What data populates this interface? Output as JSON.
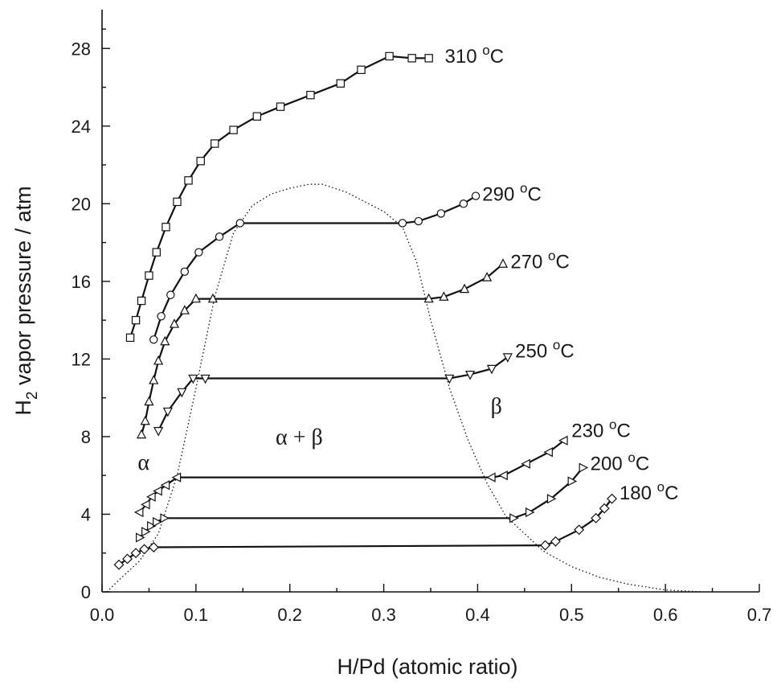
{
  "chart_data": {
    "type": "line",
    "title": "",
    "xlabel": "H/Pd (atomic ratio)",
    "ylabel_main": "H",
    "ylabel_sub": "2",
    "ylabel_rest": " vapor pressure / atm",
    "xlim": [
      0.0,
      0.7
    ],
    "ylim": [
      0,
      30
    ],
    "x_ticks": [
      "0.0",
      "0.1",
      "0.2",
      "0.3",
      "0.4",
      "0.5",
      "0.6",
      "0.7"
    ],
    "y_ticks": [
      "0",
      "4",
      "8",
      "12",
      "16",
      "20",
      "24",
      "28"
    ],
    "grid": false,
    "region_labels": [
      {
        "text": "α",
        "x": 0.038,
        "y": 6.3
      },
      {
        "text": "α + β",
        "x": 0.21,
        "y": 7.6
      },
      {
        "text": "β",
        "x": 0.42,
        "y": 9.2
      }
    ],
    "envelope": {
      "x": [
        0.005,
        0.02,
        0.04,
        0.06,
        0.08,
        0.1,
        0.12,
        0.14,
        0.16,
        0.18,
        0.2,
        0.22,
        0.235,
        0.26,
        0.28,
        0.3,
        0.32,
        0.335,
        0.35,
        0.37,
        0.39,
        0.41,
        0.43,
        0.45,
        0.47,
        0.5,
        0.53,
        0.56,
        0.6,
        0.64
      ],
      "y": [
        0.0,
        0.7,
        1.6,
        3.0,
        6.0,
        10.5,
        15.2,
        18.5,
        19.9,
        20.5,
        20.8,
        21.0,
        21.0,
        20.6,
        20.1,
        19.6,
        18.8,
        17.0,
        14.0,
        10.5,
        7.8,
        5.6,
        3.9,
        3.0,
        2.1,
        1.3,
        0.75,
        0.4,
        0.1,
        0.0
      ]
    },
    "series": [
      {
        "label": "310 °C",
        "marker": "square",
        "x": [
          0.03,
          0.036,
          0.042,
          0.05,
          0.058,
          0.068,
          0.08,
          0.092,
          0.105,
          0.12,
          0.14,
          0.165,
          0.19,
          0.222,
          0.254,
          0.276,
          0.306,
          0.33,
          0.348
        ],
        "y": [
          13.1,
          14.0,
          15.0,
          16.3,
          17.5,
          18.8,
          20.1,
          21.2,
          22.2,
          23.1,
          23.8,
          24.5,
          25.0,
          25.6,
          26.2,
          26.9,
          27.6,
          27.5,
          27.5
        ],
        "label_x": 0.365,
        "label_y": 27.6
      },
      {
        "label": "290 °C",
        "marker": "circle",
        "x": [
          0.055,
          0.063,
          0.073,
          0.088,
          0.103,
          0.125,
          0.147,
          0.32,
          0.337,
          0.361,
          0.385,
          0.398
        ],
        "y": [
          13.0,
          14.2,
          15.3,
          16.5,
          17.5,
          18.3,
          19.0,
          19.0,
          19.1,
          19.5,
          20.0,
          20.4
        ],
        "label_x": 0.405,
        "label_y": 20.5
      },
      {
        "label": "270 °C",
        "marker": "triangle-up",
        "x": [
          0.042,
          0.046,
          0.05,
          0.055,
          0.06,
          0.067,
          0.077,
          0.088,
          0.1,
          0.118,
          0.348,
          0.364,
          0.386,
          0.41,
          0.427
        ],
        "y": [
          8.1,
          8.8,
          9.8,
          10.9,
          11.9,
          12.9,
          13.8,
          14.5,
          15.1,
          15.1,
          15.1,
          15.2,
          15.6,
          16.2,
          16.9
        ],
        "label_x": 0.435,
        "label_y": 17.0
      },
      {
        "label": "250 °C",
        "marker": "triangle-down",
        "x": [
          0.06,
          0.07,
          0.085,
          0.097,
          0.11,
          0.37,
          0.392,
          0.415,
          0.432
        ],
        "y": [
          8.3,
          9.3,
          10.3,
          11.0,
          11.0,
          11.0,
          11.2,
          11.5,
          12.1
        ],
        "label_x": 0.44,
        "label_y": 12.4
      },
      {
        "label": "230 °C",
        "marker": "triangle-left",
        "x": [
          0.04,
          0.047,
          0.053,
          0.06,
          0.068,
          0.08,
          0.415,
          0.428,
          0.452,
          0.476,
          0.492
        ],
        "y": [
          4.1,
          4.5,
          4.9,
          5.2,
          5.5,
          5.9,
          5.9,
          6.0,
          6.6,
          7.2,
          7.8
        ],
        "label_x": 0.5,
        "label_y": 8.3
      },
      {
        "label": "200 °C",
        "marker": "triangle-right",
        "x": [
          0.04,
          0.046,
          0.052,
          0.058,
          0.066,
          0.438,
          0.455,
          0.478,
          0.5,
          0.512
        ],
        "y": [
          2.8,
          3.1,
          3.4,
          3.6,
          3.8,
          3.8,
          4.1,
          4.8,
          5.7,
          6.4
        ],
        "label_x": 0.52,
        "label_y": 6.6
      },
      {
        "label": "180 °C",
        "marker": "diamond",
        "x": [
          0.018,
          0.027,
          0.036,
          0.045,
          0.055,
          0.472,
          0.483,
          0.508,
          0.526,
          0.535,
          0.543
        ],
        "y": [
          1.4,
          1.7,
          2.0,
          2.2,
          2.3,
          2.4,
          2.6,
          3.2,
          3.8,
          4.3,
          4.8
        ],
        "label_x": 0.551,
        "label_y": 5.1
      }
    ]
  }
}
